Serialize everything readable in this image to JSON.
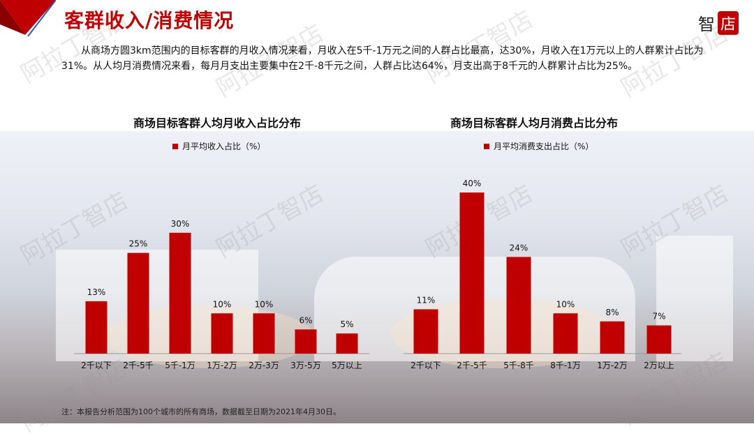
{
  "header": {
    "title": "客群收入/消费情况",
    "logo_char1": "智",
    "logo_char2": "店"
  },
  "summary": "从商场方圆3km范围内的目标客群的月收入情况来看，月收入在5千-1万元之间的人群占比最高，达30%，月收入在1万元以上的人群累计占比为31%。从人均月消费情况来看，每月月支出主要集中在2千-8千元之间，人群占比达64%，月支出高于8千元的人群累计占比为25%。",
  "footnote": "注：本报告分析范围为100个城市的所有商场，数据截至日期为2021年4月30日。",
  "watermark": "阿拉丁智店",
  "colors": {
    "accent": "#c00000"
  },
  "chart_data": [
    {
      "type": "bar",
      "title": "商场目标客群人均月收入占比分布",
      "series": [
        {
          "name": "月平均收入占比（%）",
          "values": [
            13,
            25,
            30,
            10,
            10,
            6,
            5
          ]
        }
      ],
      "categories": [
        "2千以下",
        "2千-5千",
        "5千-1万",
        "1万-2万",
        "2万-3万",
        "3万-5万",
        "5万以上"
      ],
      "data_labels": [
        "13%",
        "25%",
        "30%",
        "10%",
        "10%",
        "6%",
        "5%"
      ],
      "ylim": [
        0,
        40
      ],
      "legend": "top-center",
      "grid": false
    },
    {
      "type": "bar",
      "title": "商场目标客群人均月消费占比分布",
      "series": [
        {
          "name": "月平均消费支出占比（%）",
          "values": [
            11,
            40,
            24,
            10,
            8,
            7
          ]
        }
      ],
      "categories": [
        "2千以下",
        "2千-5千",
        "5千-8千",
        "8千-1万",
        "1万-2万",
        "2万以上"
      ],
      "data_labels": [
        "11%",
        "40%",
        "24%",
        "10%",
        "8%",
        "7%"
      ],
      "ylim": [
        0,
        40
      ],
      "legend": "top-center",
      "grid": false
    }
  ]
}
